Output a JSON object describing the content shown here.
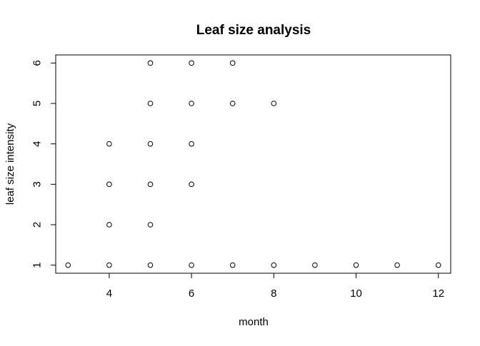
{
  "chart_data": {
    "type": "scatter",
    "title": "Leaf size analysis",
    "xlabel": "month",
    "ylabel": "leaf size intensity",
    "xlim": [
      2.7,
      12.3
    ],
    "ylim": [
      0.8,
      6.2
    ],
    "xticks": [
      4,
      6,
      8,
      10,
      12
    ],
    "yticks": [
      1,
      2,
      3,
      4,
      5,
      6
    ],
    "grid": false,
    "legend": "none",
    "colors": {
      "point": "#000000",
      "axis": "#000000",
      "background": "#ffffff"
    },
    "points": [
      {
        "x": 3,
        "y": 1
      },
      {
        "x": 4,
        "y": 1
      },
      {
        "x": 4,
        "y": 2
      },
      {
        "x": 4,
        "y": 3
      },
      {
        "x": 4,
        "y": 4
      },
      {
        "x": 5,
        "y": 1
      },
      {
        "x": 5,
        "y": 2
      },
      {
        "x": 5,
        "y": 3
      },
      {
        "x": 5,
        "y": 4
      },
      {
        "x": 5,
        "y": 5
      },
      {
        "x": 5,
        "y": 6
      },
      {
        "x": 6,
        "y": 1
      },
      {
        "x": 6,
        "y": 3
      },
      {
        "x": 6,
        "y": 4
      },
      {
        "x": 6,
        "y": 5
      },
      {
        "x": 6,
        "y": 6
      },
      {
        "x": 7,
        "y": 1
      },
      {
        "x": 7,
        "y": 5
      },
      {
        "x": 7,
        "y": 6
      },
      {
        "x": 8,
        "y": 1
      },
      {
        "x": 8,
        "y": 5
      },
      {
        "x": 9,
        "y": 1
      },
      {
        "x": 10,
        "y": 1
      },
      {
        "x": 11,
        "y": 1
      },
      {
        "x": 12,
        "y": 1
      }
    ]
  }
}
